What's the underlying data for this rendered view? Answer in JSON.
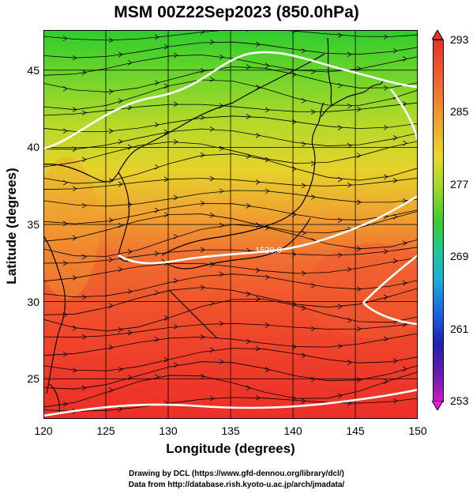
{
  "title": "MSM 00Z22Sep2023 (850.0hPa)",
  "axes": {
    "xlabel": "Longitude (degrees)",
    "ylabel": "Latitude  (degrees)",
    "x_ticks": [
      "120",
      "125",
      "130",
      "135",
      "140",
      "145",
      "150"
    ],
    "y_ticks": [
      "45",
      "40",
      "35",
      "30",
      "25"
    ],
    "x_range": [
      120,
      150
    ],
    "y_range": [
      22.4,
      47.6
    ]
  },
  "colorbar": {
    "labels": [
      "293",
      "285",
      "277",
      "269",
      "261",
      "253"
    ],
    "range": [
      253,
      293
    ],
    "colors": [
      "#e83228",
      "#f0a02a",
      "#a8d82a",
      "#3ccc2e",
      "#1ab0d8",
      "#1a20b0",
      "#c81ac8"
    ]
  },
  "contour_label": "1520.0",
  "credits": {
    "line1": "Drawing by DCL (https://www.gfd-dennou.org/library/dcl/)",
    "line2": "Data from http://database.rish.kyoto-u.ac.jp/arch/jmadata/"
  },
  "legend_icons": {
    "up": "triangle-up-icon",
    "down": "triangle-down-icon"
  }
}
